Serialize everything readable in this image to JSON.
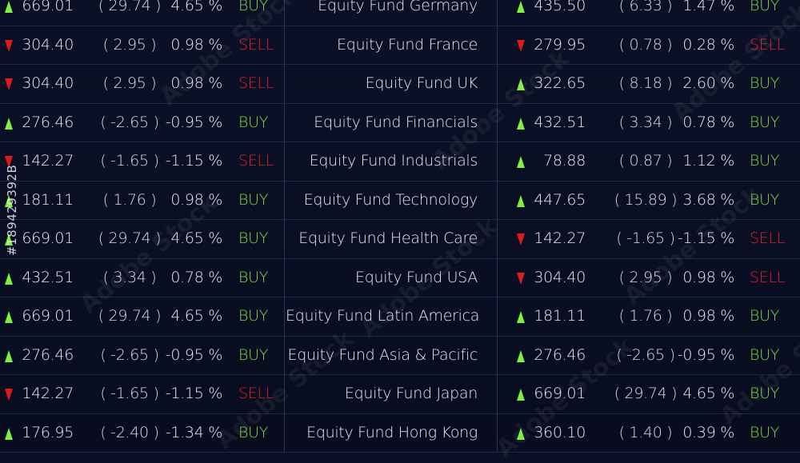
{
  "columns": [
    "price",
    "change",
    "percent",
    "signal",
    "fund"
  ],
  "colors": {
    "buy": "#7fdc3a",
    "sell": "#e0202a",
    "up_arrow": "#7cf33a",
    "down_arrow": "#e21a1a",
    "background": "#0b1026"
  },
  "rows": [
    {
      "left": {
        "dir": "up",
        "price": "669.01",
        "change": "( 29.74 )",
        "pct": "4.65 %",
        "signal": "BUY"
      },
      "fund": "Equity Fund  Germany",
      "right": {
        "dir": "up",
        "price": "435.50",
        "change": "( 6.33 )",
        "pct": "1.47 %",
        "signal": "BUY"
      }
    },
    {
      "left": {
        "dir": "down",
        "price": "304.40",
        "change": "( 2.95 )",
        "pct": "0.98 %",
        "signal": "SELL"
      },
      "fund": "Equity Fund  France",
      "right": {
        "dir": "down",
        "price": "279.95",
        "change": "( 0.78 )",
        "pct": "0.28 %",
        "signal": "SELL"
      }
    },
    {
      "left": {
        "dir": "down",
        "price": "304.40",
        "change": "( 2.95 )",
        "pct": "0.98 %",
        "signal": "SELL"
      },
      "fund": "Equity Fund  UK",
      "right": {
        "dir": "up",
        "price": "322.65",
        "change": "( 8.18 )",
        "pct": "2.60 %",
        "signal": "BUY"
      }
    },
    {
      "left": {
        "dir": "up",
        "price": "276.46",
        "change": "( -2.65 )",
        "pct": "-0.95 %",
        "signal": "BUY"
      },
      "fund": "Equity Fund  Financials",
      "right": {
        "dir": "up",
        "price": "432.51",
        "change": "( 3.34 )",
        "pct": "0.78 %",
        "signal": "BUY"
      }
    },
    {
      "left": {
        "dir": "down",
        "price": "142.27",
        "change": "( -1.65 )",
        "pct": "-1.15 %",
        "signal": "SELL"
      },
      "fund": "Equity Fund Industrials",
      "right": {
        "dir": "up",
        "price": "78.88",
        "change": "( 0.87 )",
        "pct": "1.12 %",
        "signal": "BUY"
      }
    },
    {
      "left": {
        "dir": "up",
        "price": "181.11",
        "change": "( 1.76 )",
        "pct": "0.98 %",
        "signal": "BUY"
      },
      "fund": "Equity Fund Technology",
      "right": {
        "dir": "up",
        "price": "447.65",
        "change": "( 15.89 )",
        "pct": "3.68 %",
        "signal": "BUY"
      }
    },
    {
      "left": {
        "dir": "up",
        "price": "669.01",
        "change": "( 29.74 )",
        "pct": "4.65 %",
        "signal": "BUY"
      },
      "fund": "Equity Fund  Health Care",
      "right": {
        "dir": "down",
        "price": "142.27",
        "change": "( -1.65 )",
        "pct": "-1.15 %",
        "signal": "SELL"
      }
    },
    {
      "left": {
        "dir": "up",
        "price": "432.51",
        "change": "( 3.34 )",
        "pct": "0.78 %",
        "signal": "BUY"
      },
      "fund": "Equity Fund USA",
      "right": {
        "dir": "down",
        "price": "304.40",
        "change": "( 2.95 )",
        "pct": "0.98 %",
        "signal": "SELL"
      }
    },
    {
      "left": {
        "dir": "up",
        "price": "669.01",
        "change": "( 29.74 )",
        "pct": "4.65 %",
        "signal": "BUY"
      },
      "fund": "Equity Fund Latin America",
      "right": {
        "dir": "up",
        "price": "181.11",
        "change": "( 1.76 )",
        "pct": "0.98 %",
        "signal": "BUY"
      }
    },
    {
      "left": {
        "dir": "up",
        "price": "276.46",
        "change": "( -2.65 )",
        "pct": "-0.95 %",
        "signal": "BUY"
      },
      "fund": "Equity Fund Asia & Pacific",
      "right": {
        "dir": "up",
        "price": "276.46",
        "change": "( -2.65 )",
        "pct": "-0.95 %",
        "signal": "BUY"
      }
    },
    {
      "left": {
        "dir": "down",
        "price": "142.27",
        "change": "( -1.65 )",
        "pct": "-1.15 %",
        "signal": "SELL"
      },
      "fund": "Equity Fund Japan",
      "right": {
        "dir": "up",
        "price": "669.01",
        "change": "( 29.74 )",
        "pct": "4.65 %",
        "signal": "BUY"
      }
    },
    {
      "left": {
        "dir": "up",
        "price": "176.95",
        "change": "( -2.40 )",
        "pct": "-1.34 %",
        "signal": "BUY"
      },
      "fund": "Equity Fund Hong Kong",
      "right": {
        "dir": "up",
        "price": "360.10",
        "change": "( 1.40 )",
        "pct": "0.39 %",
        "signal": "BUY"
      }
    }
  ],
  "watermark": {
    "brand": "Adobe Stock",
    "id": "#189429392B"
  }
}
